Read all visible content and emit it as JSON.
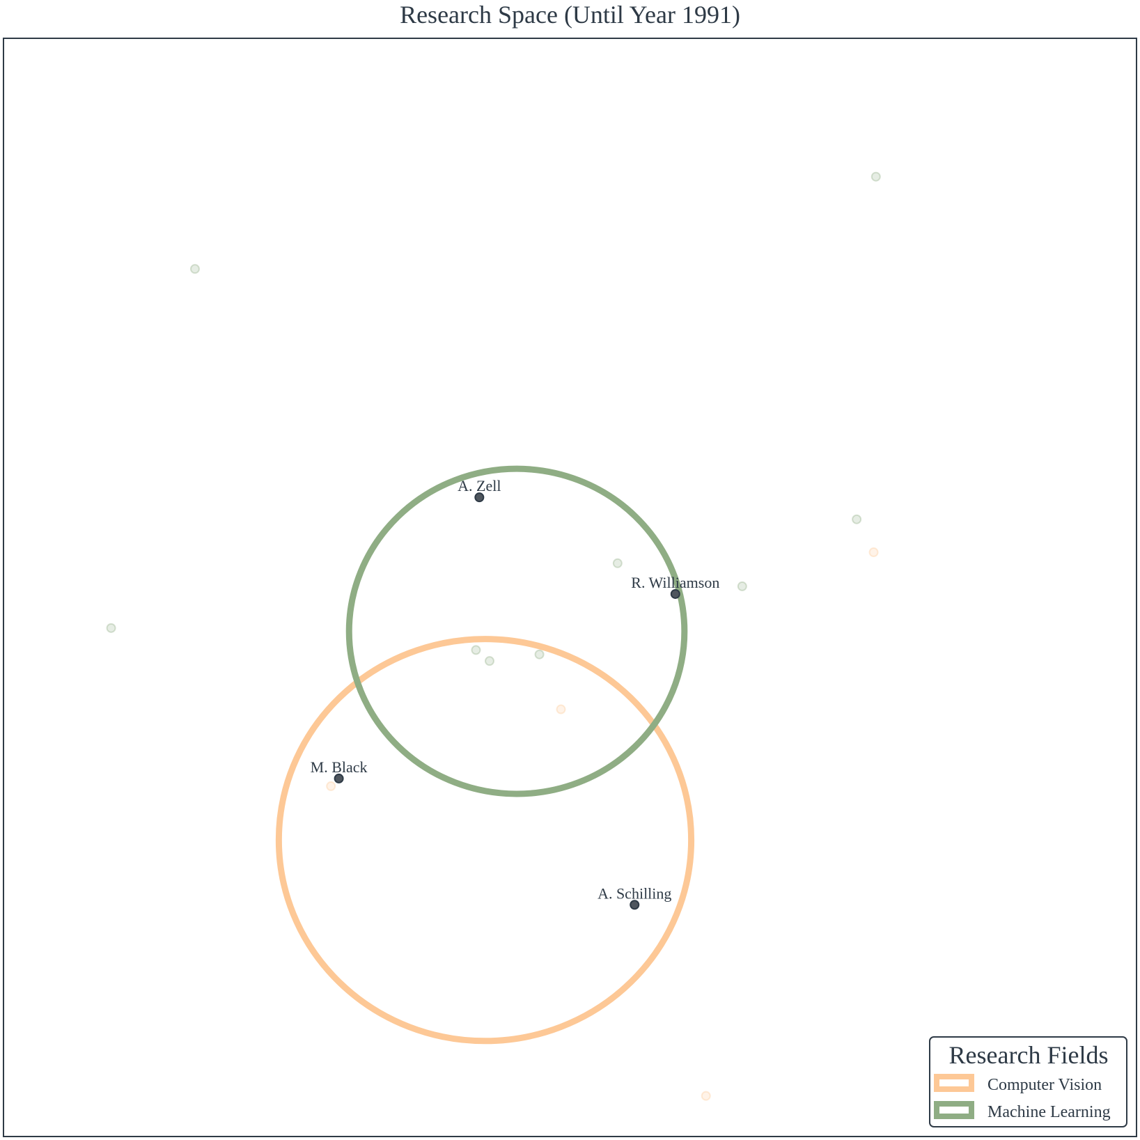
{
  "chart_data": {
    "type": "scatter",
    "title": "Research Space (Until Year 1991)",
    "xlabel": "",
    "ylabel": "",
    "xlim": [
      0,
      100
    ],
    "ylim": [
      0,
      100
    ],
    "grid": false,
    "legend": {
      "title": "Research Fields",
      "placement": "bottom-right",
      "entries": [
        {
          "label": "Computer Vision",
          "color": "#fdc896"
        },
        {
          "label": "Machine Learning",
          "color": "#8fad84"
        }
      ]
    },
    "fields": [
      {
        "name": "Computer Vision",
        "color": "#fdc896",
        "center": [
          42.5,
          27.0
        ],
        "radius_x": 18.2,
        "radius_y": 18.3
      },
      {
        "name": "Machine Learning",
        "color": "#8fad84",
        "center": [
          45.3,
          46.0
        ],
        "radius_x": 14.8,
        "radius_y": 14.8
      }
    ],
    "highlighted_points": [
      {
        "label": "A. Zell",
        "x": 42.0,
        "y": 58.2
      },
      {
        "label": "R. Williamson",
        "x": 59.3,
        "y": 49.4
      },
      {
        "label": "M. Black",
        "x": 29.6,
        "y": 32.6
      },
      {
        "label": "A. Schilling",
        "x": 55.7,
        "y": 21.1
      }
    ],
    "background_points": [
      {
        "field": "Machine Learning",
        "x": 77.0,
        "y": 87.4
      },
      {
        "field": "Machine Learning",
        "x": 16.9,
        "y": 79.0
      },
      {
        "field": "Machine Learning",
        "x": 75.3,
        "y": 56.2
      },
      {
        "field": "Machine Learning",
        "x": 54.2,
        "y": 52.2
      },
      {
        "field": "Machine Learning",
        "x": 65.2,
        "y": 50.1
      },
      {
        "field": "Machine Learning",
        "x": 9.5,
        "y": 46.3
      },
      {
        "field": "Machine Learning",
        "x": 41.7,
        "y": 44.3
      },
      {
        "field": "Machine Learning",
        "x": 42.9,
        "y": 43.3
      },
      {
        "field": "Machine Learning",
        "x": 47.3,
        "y": 43.9
      },
      {
        "field": "Computer Vision",
        "x": 76.8,
        "y": 53.2
      },
      {
        "field": "Computer Vision",
        "x": 49.2,
        "y": 38.9
      },
      {
        "field": "Computer Vision",
        "x": 28.9,
        "y": 31.9
      },
      {
        "field": "Computer Vision",
        "x": 62.0,
        "y": 3.7
      }
    ]
  }
}
